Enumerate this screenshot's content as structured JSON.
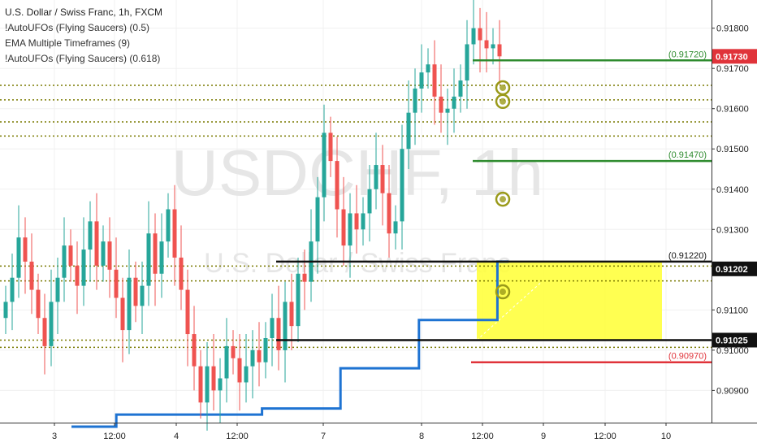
{
  "legend": {
    "main": "U.S. Dollar / Swiss Franc, 1h, FXCM",
    "ind1": "!AutoUFOs (Flying Saucers) (0.5)",
    "ind2": "EMA Multiple Timeframes (9)",
    "ind3": "!AutoUFOs (Flying Saucers) (0.618)"
  },
  "watermark": {
    "symbol": "USDCHF, 1h",
    "name": "U.S. Dollar / Swiss Franc"
  },
  "chart_data": {
    "type": "candlestick",
    "symbol": "USDCHF",
    "interval": "1h",
    "y_axis": {
      "min": 0.9082,
      "max": 0.9187,
      "ticks": [
        "0.91800",
        "0.91700",
        "0.91600",
        "0.91500",
        "0.91400",
        "0.91300",
        "0.91100",
        "0.91000",
        "0.90900"
      ]
    },
    "x_axis": {
      "ticks": [
        "3",
        "12:00",
        "4",
        "12:00",
        "7",
        "8",
        "12:00",
        "9",
        "12:00",
        "10"
      ]
    },
    "price_labels": [
      {
        "value": 0.9173,
        "text": "0.91730",
        "bg": "#e0333a",
        "fg": "#ffffff"
      },
      {
        "value": 0.91202,
        "text": "0.91202",
        "bg": "#111111",
        "fg": "#ffffff"
      },
      {
        "value": 0.91025,
        "text": "0.91025",
        "bg": "#111111",
        "fg": "#ffffff"
      }
    ],
    "levels": [
      {
        "price": 0.9172,
        "label": "(0.91720)",
        "color": "#2e8b2e",
        "style": "solid"
      },
      {
        "price": 0.9147,
        "label": "(0.91470)",
        "color": "#2e8b2e",
        "style": "solid"
      },
      {
        "price": 0.9122,
        "label": "(0.91220)",
        "color": "#111111",
        "style": "solid"
      },
      {
        "price": 0.91025,
        "label": "",
        "color": "#111111",
        "style": "solid"
      },
      {
        "price": 0.9097,
        "label": "(0.90970)",
        "color": "#e0333a",
        "style": "solid"
      }
    ],
    "dotted_levels": [
      0.91658,
      0.91622,
      0.91567,
      0.91532,
      0.91209,
      0.91172,
      0.91025,
      0.91007
    ],
    "box": {
      "top": 0.9122,
      "bottom": 0.91025,
      "color": "#ffff33"
    },
    "ufos": [
      0.91652,
      0.91618,
      0.91375,
      0.91145
    ],
    "ema_steps": [
      {
        "from": 0,
        "to": 8,
        "price": 0.9081
      },
      {
        "from": 8,
        "to": 34,
        "price": 0.9084
      },
      {
        "from": 34,
        "to": 48,
        "price": 0.90855
      },
      {
        "from": 48,
        "to": 62,
        "price": 0.90955
      },
      {
        "from": 62,
        "to": 72,
        "price": 0.91075
      },
      {
        "from": 72,
        "to": 76,
        "price": 0.91075
      },
      {
        "from": 76,
        "to": 78,
        "price": 0.9122
      }
    ],
    "candles_close": [
      0.9112,
      0.9118,
      0.9128,
      0.9122,
      0.9115,
      0.9108,
      0.9101,
      0.9112,
      0.9118,
      0.9126,
      0.9121,
      0.9116,
      0.9125,
      0.9132,
      0.9121,
      0.9127,
      0.912,
      0.9113,
      0.9105,
      0.9118,
      0.9111,
      0.9116,
      0.9129,
      0.9119,
      0.9127,
      0.9135,
      0.9123,
      0.9115,
      0.9104,
      0.9096,
      0.9087,
      0.9096,
      0.909,
      0.9093,
      0.9101,
      0.9098,
      0.9092,
      0.9096,
      0.91,
      0.9097,
      0.9103,
      0.9108,
      0.91,
      0.9112,
      0.9106,
      0.9119,
      0.9117,
      0.9127,
      0.9138,
      0.9154,
      0.9147,
      0.9135,
      0.9126,
      0.9134,
      0.913,
      0.9134,
      0.914,
      0.9146,
      0.9139,
      0.9129,
      0.9132,
      0.915,
      0.9159,
      0.9165,
      0.9169,
      0.9171,
      0.9163,
      0.9159,
      0.916,
      0.9163,
      0.9167,
      0.9176,
      0.918,
      0.9177,
      0.9175,
      0.9176,
      0.9173
    ]
  },
  "colors": {
    "up": "#26a69a",
    "down": "#ef5350",
    "ema": "#1e73d2",
    "ufo": "#9a9a1a",
    "grid": "#f0f0f0",
    "axis_text": "#222222"
  }
}
